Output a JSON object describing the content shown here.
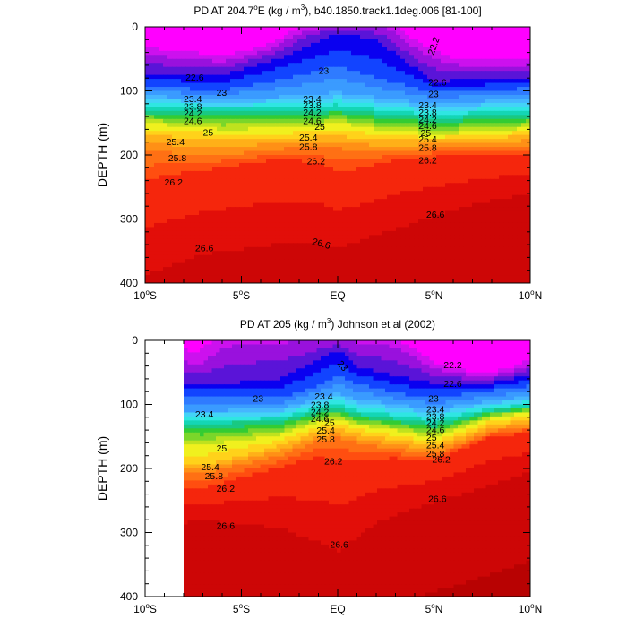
{
  "chart_data": [
    {
      "type": "contour",
      "title_main": "PD AT 204.7",
      "title_deg": "o",
      "title_rest1": "E (kg / m",
      "title_sup": "3",
      "title_rest2": "), b40.1850.track1.1deg.006 [81-100]",
      "ylabel": "DEPTH (m)",
      "xlim": [
        -10,
        10
      ],
      "ylim": [
        0,
        400
      ],
      "y_inverted": true,
      "x_ticks": [
        {
          "v": -10,
          "num": "10",
          "sup": "o",
          "hem": "S"
        },
        {
          "v": -5,
          "num": "5",
          "sup": "o",
          "hem": "S"
        },
        {
          "v": 0,
          "num": "EQ",
          "sup": "",
          "hem": ""
        },
        {
          "v": 5,
          "num": "5",
          "sup": "o",
          "hem": "N"
        },
        {
          "v": 10,
          "num": "10",
          "sup": "o",
          "hem": "N"
        }
      ],
      "y_ticks": [
        0,
        100,
        200,
        300,
        400
      ],
      "contour_levels": [
        22.0,
        22.2,
        22.4,
        22.6,
        22.8,
        23.0,
        23.2,
        23.4,
        23.6,
        23.8,
        24.0,
        24.2,
        24.4,
        24.6,
        24.8,
        25.0,
        25.2,
        25.4,
        25.6,
        25.8,
        26.0,
        26.2,
        26.4,
        26.6,
        26.8
      ],
      "contour_labels": [
        {
          "text": "22.2",
          "x": 4.8,
          "y": 43,
          "rot": -70
        },
        {
          "text": "22.6",
          "x": -7.9,
          "y": 78
        },
        {
          "text": "22.6",
          "x": 4.7,
          "y": 86
        },
        {
          "text": "23",
          "x": -1.0,
          "y": 68
        },
        {
          "text": "23",
          "x": -6.3,
          "y": 102
        },
        {
          "text": "23",
          "x": 4.7,
          "y": 104
        },
        {
          "text": "23.4",
          "x": -8.0,
          "y": 112
        },
        {
          "text": "23.8",
          "x": -8.0,
          "y": 124
        },
        {
          "text": "24.2",
          "x": -8.0,
          "y": 134
        },
        {
          "text": "24.6",
          "x": -8.0,
          "y": 146
        },
        {
          "text": "23.4",
          "x": -1.8,
          "y": 112
        },
        {
          "text": "23.8",
          "x": -1.8,
          "y": 122
        },
        {
          "text": "24.2",
          "x": -1.8,
          "y": 133
        },
        {
          "text": "24.6",
          "x": -1.8,
          "y": 146
        },
        {
          "text": "25",
          "x": -1.2,
          "y": 155
        },
        {
          "text": "23.4",
          "x": 4.2,
          "y": 122
        },
        {
          "text": "23.8",
          "x": 4.2,
          "y": 133
        },
        {
          "text": "24.2",
          "x": 4.2,
          "y": 144
        },
        {
          "text": "24.6",
          "x": 4.2,
          "y": 154
        },
        {
          "text": "25",
          "x": 4.3,
          "y": 165
        },
        {
          "text": "25",
          "x": -7.0,
          "y": 164
        },
        {
          "text": "25.4",
          "x": -8.9,
          "y": 179
        },
        {
          "text": "25.4",
          "x": -2.0,
          "y": 172
        },
        {
          "text": "25.4",
          "x": 4.2,
          "y": 175
        },
        {
          "text": "25.8",
          "x": -2.0,
          "y": 187
        },
        {
          "text": "25.8",
          "x": 4.2,
          "y": 188
        },
        {
          "text": "25.8",
          "x": -8.8,
          "y": 204
        },
        {
          "text": "26.2",
          "x": -1.6,
          "y": 209
        },
        {
          "text": "26.2",
          "x": 4.2,
          "y": 208
        },
        {
          "text": "26.2",
          "x": -9.0,
          "y": 242
        },
        {
          "text": "26.6",
          "x": 4.6,
          "y": 292
        },
        {
          "text": "26.6",
          "x": -7.4,
          "y": 345
        },
        {
          "text": "26.6",
          "x": -1.3,
          "y": 334,
          "rot": 15
        }
      ]
    },
    {
      "type": "contour",
      "title_main": "PD AT 205 (kg / m",
      "title_sup": "3",
      "title_rest": ") Johnson et al (2002)",
      "ylabel": "DEPTH (m)",
      "xlim": [
        -10,
        10
      ],
      "ylim": [
        0,
        400
      ],
      "y_inverted": true,
      "data_x_range": [
        -8,
        10
      ],
      "x_ticks": [
        {
          "v": -10,
          "num": "10",
          "sup": "o",
          "hem": "S"
        },
        {
          "v": -5,
          "num": "5",
          "sup": "o",
          "hem": "S"
        },
        {
          "v": 0,
          "num": "EQ",
          "sup": "",
          "hem": ""
        },
        {
          "v": 5,
          "num": "5",
          "sup": "o",
          "hem": "N"
        },
        {
          "v": 10,
          "num": "10",
          "sup": "o",
          "hem": "N"
        }
      ],
      "y_ticks": [
        0,
        100,
        200,
        300,
        400
      ],
      "contour_levels": [
        22.0,
        22.2,
        22.4,
        22.6,
        22.8,
        23.0,
        23.2,
        23.4,
        23.6,
        23.8,
        24.0,
        24.2,
        24.4,
        24.6,
        24.8,
        25.0,
        25.2,
        25.4,
        25.6,
        25.8,
        26.0,
        26.2,
        26.4,
        26.6,
        26.8
      ],
      "contour_labels": [
        {
          "text": "23",
          "x": 0.1,
          "y": 33,
          "rot": 50
        },
        {
          "text": "22.2",
          "x": 5.5,
          "y": 38
        },
        {
          "text": "22.6",
          "x": 5.5,
          "y": 67
        },
        {
          "text": "23",
          "x": -4.4,
          "y": 90
        },
        {
          "text": "23.4",
          "x": -7.4,
          "y": 115
        },
        {
          "text": "23.4",
          "x": -1.2,
          "y": 87
        },
        {
          "text": "23",
          "x": 4.7,
          "y": 90
        },
        {
          "text": "23.8",
          "x": -1.4,
          "y": 100
        },
        {
          "text": "24.2",
          "x": -1.4,
          "y": 111
        },
        {
          "text": "24.6",
          "x": -1.4,
          "y": 122
        },
        {
          "text": "25",
          "x": -0.7,
          "y": 128
        },
        {
          "text": "25.4",
          "x": -1.1,
          "y": 140
        },
        {
          "text": "25.8",
          "x": -1.1,
          "y": 154
        },
        {
          "text": "23.4",
          "x": 4.6,
          "y": 107
        },
        {
          "text": "23.8",
          "x": 4.6,
          "y": 118
        },
        {
          "text": "24.2",
          "x": 4.6,
          "y": 128
        },
        {
          "text": "24.6",
          "x": 4.6,
          "y": 139
        },
        {
          "text": "25",
          "x": 4.6,
          "y": 151
        },
        {
          "text": "25.4",
          "x": 4.6,
          "y": 163
        },
        {
          "text": "25.8",
          "x": 4.6,
          "y": 176
        },
        {
          "text": "25",
          "x": -6.3,
          "y": 168
        },
        {
          "text": "25.4",
          "x": -7.1,
          "y": 197
        },
        {
          "text": "25.8",
          "x": -6.9,
          "y": 211
        },
        {
          "text": "26.2",
          "x": -6.3,
          "y": 231
        },
        {
          "text": "26.2",
          "x": -0.7,
          "y": 188
        },
        {
          "text": "26.2",
          "x": 4.9,
          "y": 185
        },
        {
          "text": "26.6",
          "x": -6.3,
          "y": 289
        },
        {
          "text": "26.6",
          "x": 4.7,
          "y": 247
        },
        {
          "text": "26.6",
          "x": -0.4,
          "y": 318
        }
      ]
    }
  ]
}
